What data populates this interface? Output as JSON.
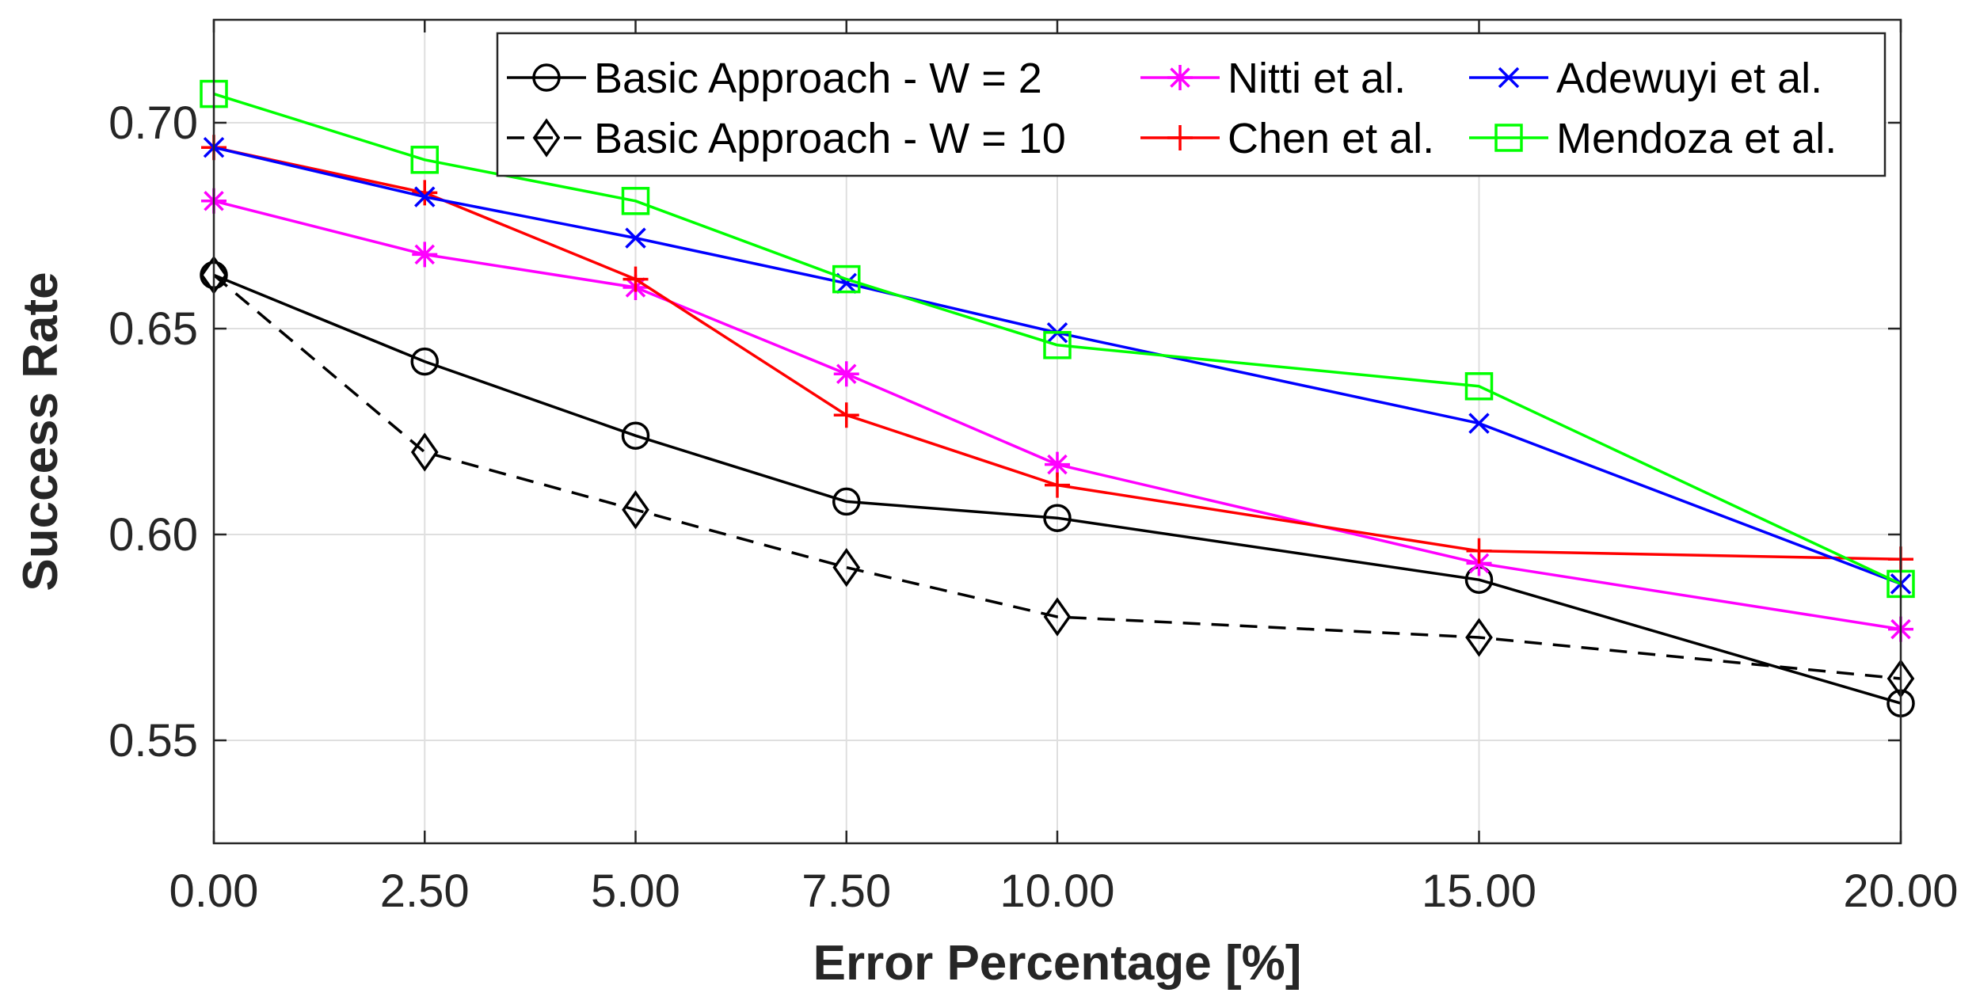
{
  "chart_data": {
    "type": "line",
    "title": "",
    "xlabel": "Error Percentage [%]",
    "ylabel": "Success Rate",
    "xlim": [
      0,
      20
    ],
    "ylim": [
      0.525,
      0.725
    ],
    "xticks": [
      0,
      2.5,
      5,
      7.5,
      10,
      15,
      20
    ],
    "xtick_labels": [
      "0.00",
      "2.50",
      "5.00",
      "7.50",
      "10.00",
      "15.00",
      "20.00"
    ],
    "yticks": [
      0.55,
      0.6,
      0.65,
      0.7
    ],
    "ytick_labels": [
      "0.55",
      "0.60",
      "0.65",
      "0.70"
    ],
    "grid": true,
    "legend_position": "top-right",
    "x": [
      0,
      2.5,
      5,
      7.5,
      10,
      15,
      20
    ],
    "series": [
      {
        "name": "Basic Approach - W = 2",
        "color": "#000000",
        "dash": "solid",
        "marker": "circle",
        "values": [
          0.663,
          0.642,
          0.624,
          0.608,
          0.604,
          0.589,
          0.559
        ]
      },
      {
        "name": "Basic Approach - W = 10",
        "color": "#000000",
        "dash": "dashed",
        "marker": "diamond",
        "values": [
          0.663,
          0.62,
          0.606,
          0.592,
          0.58,
          0.575,
          0.565
        ]
      },
      {
        "name": "Nitti et al.",
        "color": "#ff00ff",
        "dash": "solid",
        "marker": "asterisk",
        "values": [
          0.681,
          0.668,
          0.66,
          0.639,
          0.617,
          0.593,
          0.577
        ]
      },
      {
        "name": "Chen et al.",
        "color": "#ff0000",
        "dash": "solid",
        "marker": "plus",
        "values": [
          0.694,
          0.683,
          0.662,
          0.629,
          0.612,
          0.596,
          0.594
        ]
      },
      {
        "name": "Adewuyi et al.",
        "color": "#0000ff",
        "dash": "solid",
        "marker": "x",
        "values": [
          0.694,
          0.682,
          0.672,
          0.661,
          0.649,
          0.627,
          0.588
        ]
      },
      {
        "name": "Mendoza et al.",
        "color": "#00ff00",
        "dash": "solid",
        "marker": "square",
        "values": [
          0.707,
          0.691,
          0.681,
          0.662,
          0.646,
          0.636,
          0.588
        ]
      }
    ],
    "legend_order": [
      0,
      2,
      4,
      1,
      3,
      5
    ]
  }
}
